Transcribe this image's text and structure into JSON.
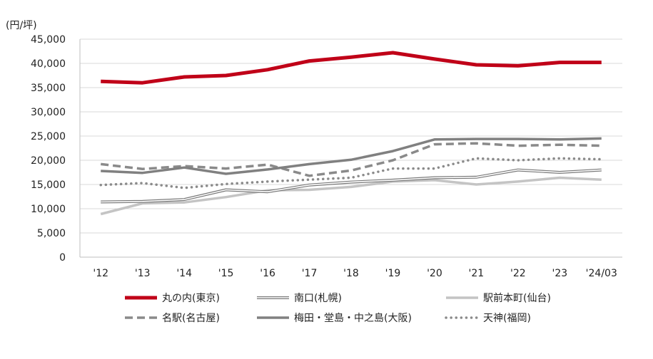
{
  "chart_data": {
    "type": "line",
    "unit_label": "(円/坪)",
    "categories": [
      "'12",
      "'13",
      "'14",
      "'15",
      "'16",
      "'17",
      "'18",
      "'19",
      "'20",
      "'21",
      "'22",
      "'23",
      "'24/03"
    ],
    "y_ticks": [
      "0",
      "5,000",
      "10,000",
      "15,000",
      "20,000",
      "25,000",
      "30,000",
      "35,000",
      "40,000",
      "45,000"
    ],
    "ylim": [
      0,
      45000
    ],
    "grid": true,
    "legend_position": "bottom",
    "series": [
      {
        "name": "丸の内(東京)",
        "color": "#c00018",
        "style": "solid-thick",
        "values": [
          36300,
          36000,
          37200,
          37500,
          38700,
          40500,
          41300,
          42200,
          40900,
          39700,
          39500,
          40200,
          40200
        ]
      },
      {
        "name": "南口(札幌)",
        "color": "#7a7a7a",
        "style": "double",
        "values": [
          11400,
          11500,
          11900,
          13900,
          13500,
          14900,
          15500,
          15900,
          16400,
          16500,
          18000,
          17500,
          18000
        ]
      },
      {
        "name": "駅前本町(仙台)",
        "color": "#c4c4c4",
        "style": "solid",
        "values": [
          8900,
          11100,
          11300,
          12400,
          13800,
          13900,
          14500,
          15600,
          15900,
          15000,
          15600,
          16400,
          16000
        ]
      },
      {
        "name": "名駅(名古屋)",
        "color": "#8a8a8a",
        "style": "dashed",
        "values": [
          19200,
          18200,
          18800,
          18300,
          19100,
          16800,
          17900,
          20000,
          23300,
          23500,
          23000,
          23200,
          23000
        ]
      },
      {
        "name": "梅田・堂島・中之島(大阪)",
        "color": "#808080",
        "style": "solid",
        "values": [
          17800,
          17400,
          18500,
          17200,
          18100,
          19200,
          20100,
          21900,
          24300,
          24400,
          24400,
          24300,
          24500
        ]
      },
      {
        "name": "天神(福岡)",
        "color": "#8a8a8a",
        "style": "dotted",
        "values": [
          14900,
          15300,
          14300,
          15100,
          15600,
          16000,
          16400,
          18300,
          18300,
          20400,
          20000,
          20400,
          20200
        ]
      }
    ]
  }
}
